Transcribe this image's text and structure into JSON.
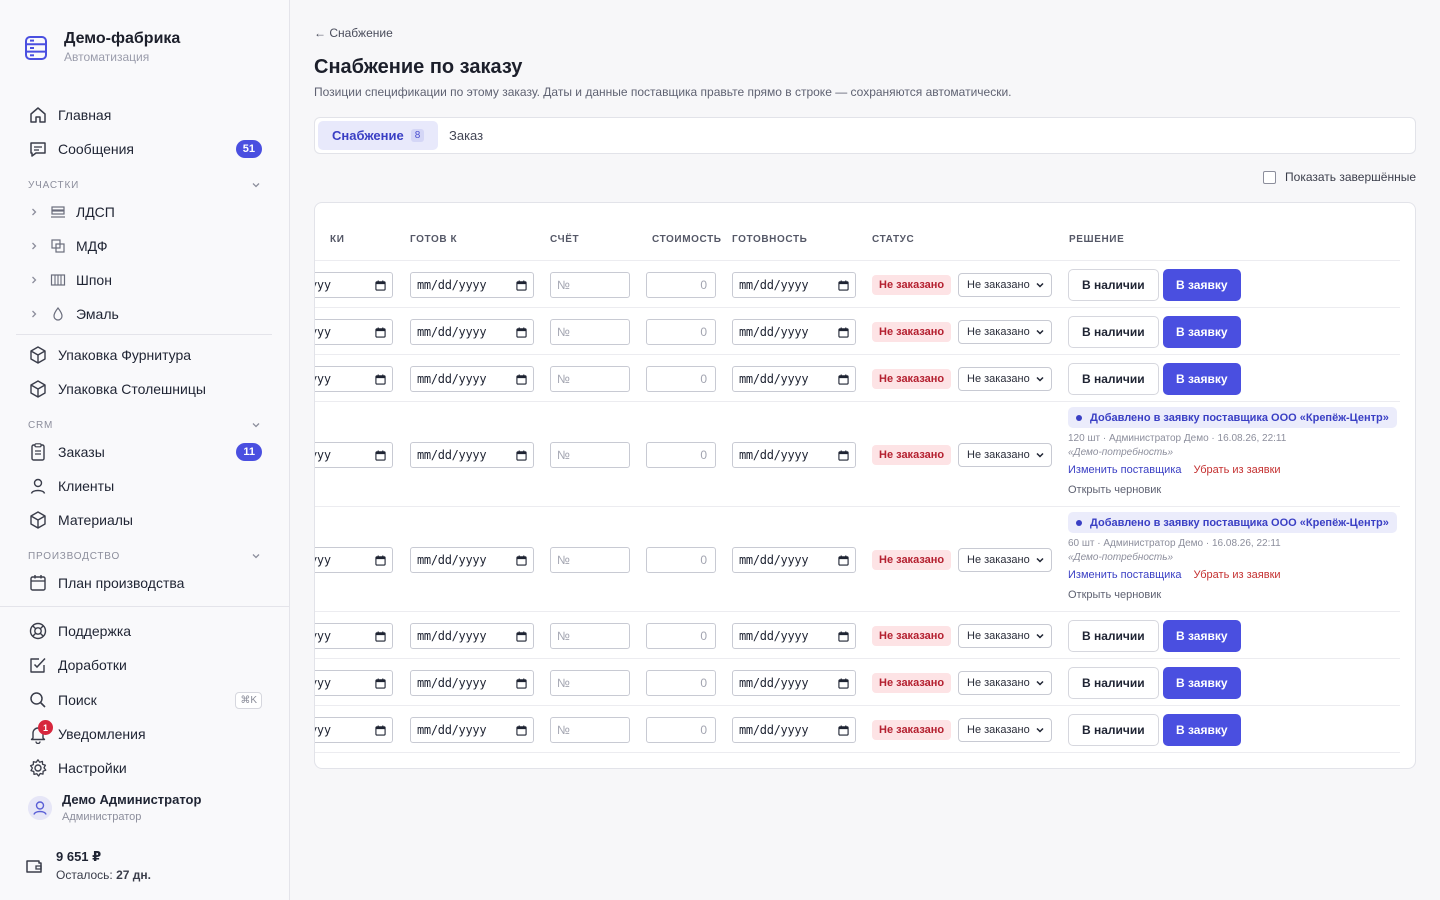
{
  "brand": {
    "title": "Демо-фабрика",
    "subtitle": "Автоматизация"
  },
  "nav": {
    "home": "Главная",
    "messages": "Сообщения",
    "messages_badge": "51",
    "sections": {
      "areas": "УЧАСТКИ",
      "crm": "CRM",
      "production": "ПРОИЗВОДСТВО"
    },
    "areas": [
      "ЛДСП",
      "МДФ",
      "Шпон",
      "Эмаль"
    ],
    "packing_hardware": "Упаковка Фурнитура",
    "packing_tops": "Упаковка Столешницы",
    "orders": "Заказы",
    "orders_badge": "11",
    "clients": "Клиенты",
    "materials": "Материалы",
    "plan": "План производства",
    "support": "Поддержка",
    "improvements": "Доработки",
    "search": "Поиск",
    "search_shortcut": "⌘K",
    "notifications": "Уведомления",
    "notifications_badge": "1",
    "settings": "Настройки"
  },
  "user": {
    "name": "Демо Администратор",
    "role": "Администратор"
  },
  "wallet": {
    "amount": "9 651 ₽",
    "left_label": "Осталось:",
    "left_value": "27 дн."
  },
  "page": {
    "breadcrumb": "← Снабжение",
    "title": "Снабжение по заказу",
    "description": "Позиции спецификации по этому заказу. Даты и данные поставщика правьте прямо в строке — сохраняются автоматически.",
    "tabs": [
      {
        "label": "Снабжение",
        "count": "8"
      },
      {
        "label": "Заказ"
      }
    ],
    "show_done": "Показать завершённые"
  },
  "table": {
    "columns": [
      "КИ",
      "ГОТОВ К",
      "СЧЁТ",
      "СТОИМОСТЬ",
      "ГОТОВНОСТЬ",
      "СТАТУС",
      "РЕШЕНИЕ"
    ],
    "date_partial": "yyy",
    "date_placeholder": "mm/dd/yyyy",
    "invoice_placeholder": "№",
    "cost_placeholder": "0",
    "status_label": "Не заказано",
    "status_select": "Не заказано",
    "btn_in_stock": "В наличии",
    "btn_to_request": "В заявку",
    "added_label": "Добавлено в заявку поставщика ООО «Крепёж-Центр»",
    "change_supplier": "Изменить поставщика",
    "remove_from_request": "Убрать из заявки",
    "open_draft": "Открыть черновик",
    "rows": [
      {
        "type": "actions"
      },
      {
        "type": "actions"
      },
      {
        "type": "actions"
      },
      {
        "type": "added",
        "meta": "120 шт · Администратор Демо · 16.08.26, 22:11",
        "need": "«Демо-потребность»"
      },
      {
        "type": "added",
        "meta": "60 шт · Администратор Демо · 16.08.26, 22:11",
        "need": "«Демо-потребность»"
      },
      {
        "type": "actions"
      },
      {
        "type": "actions"
      },
      {
        "type": "actions"
      }
    ]
  },
  "colors": {
    "accent": "#4a4fe0",
    "danger_bg": "#fde3e5",
    "danger_text": "#b42030"
  }
}
